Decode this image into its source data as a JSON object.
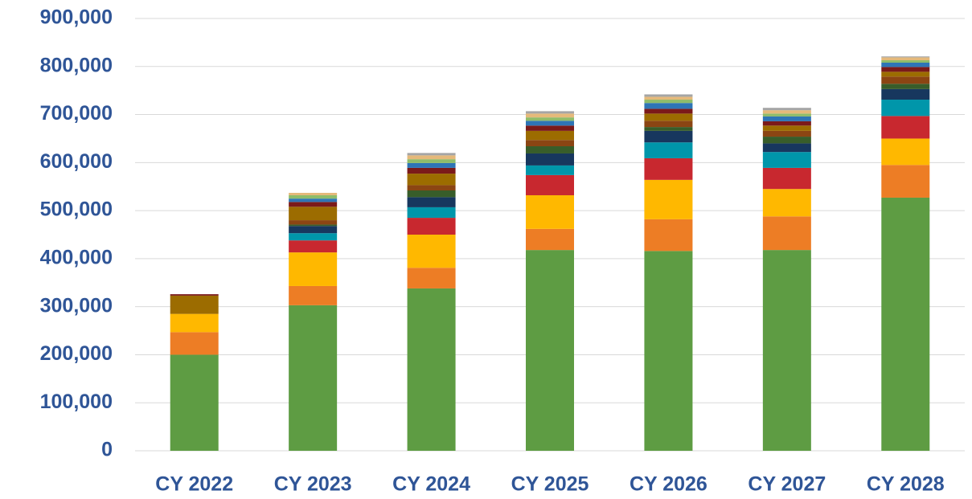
{
  "chart_data": {
    "type": "stacked_bar",
    "categories": [
      "CY 2022",
      "CY 2023",
      "CY 2024",
      "CY 2025",
      "CY 2026",
      "CY 2027",
      "CY 2028"
    ],
    "series": [
      {
        "color": "#5e9c43",
        "values": [
          200000,
          303000,
          338000,
          418000,
          416000,
          418000,
          527000
        ]
      },
      {
        "color": "#ed7d25",
        "values": [
          47000,
          40000,
          43000,
          44000,
          66000,
          70000,
          68000
        ]
      },
      {
        "color": "#ffb800",
        "values": [
          38000,
          70000,
          69000,
          70000,
          82000,
          57000,
          55000
        ]
      },
      {
        "color": "#c8282f",
        "values": [
          0,
          25000,
          35000,
          42000,
          45000,
          44000,
          47000
        ]
      },
      {
        "color": "#0096aa",
        "values": [
          0,
          15000,
          22000,
          20000,
          33000,
          33000,
          34000
        ]
      },
      {
        "color": "#17375e",
        "values": [
          0,
          15000,
          21000,
          25000,
          24000,
          18000,
          22000
        ]
      },
      {
        "color": "#385d2a",
        "values": [
          0,
          3000,
          14000,
          15000,
          8000,
          14000,
          11000
        ]
      },
      {
        "color": "#8b4513",
        "values": [
          0,
          9000,
          11000,
          13000,
          13000,
          12000,
          15000
        ]
      },
      {
        "color": "#9c6c00",
        "values": [
          38000,
          28000,
          24000,
          19000,
          15000,
          11000,
          10000
        ]
      },
      {
        "color": "#7b1a1a",
        "values": [
          3000,
          10000,
          12000,
          11000,
          10000,
          9000,
          10000
        ]
      },
      {
        "color": "#2e75b6",
        "values": [
          0,
          7000,
          10000,
          10000,
          12000,
          10000,
          9000
        ]
      },
      {
        "color": "#8fbc6a",
        "values": [
          0,
          7000,
          8000,
          7000,
          7000,
          6000,
          5000
        ]
      },
      {
        "color": "#e5b97a",
        "values": [
          0,
          5000,
          8000,
          8000,
          6000,
          7000,
          6000
        ]
      },
      {
        "color": "#a5a5a5",
        "values": [
          0,
          0,
          5000,
          5000,
          5000,
          5000,
          2000
        ]
      }
    ],
    "ylim": [
      0,
      900000
    ],
    "yticks": [
      0,
      {
        "value": 100000,
        "label": "100,000"
      },
      {
        "value": 200000,
        "label": "200,000"
      },
      {
        "value": 300000,
        "label": "300,000"
      },
      {
        "value": 400000,
        "label": "400,000"
      },
      {
        "value": 500000,
        "label": "500,000"
      },
      {
        "value": 600000,
        "label": "600,000"
      },
      {
        "value": 700000,
        "label": "700,000"
      },
      {
        "value": 800000,
        "label": "800,000"
      },
      {
        "value": 900000,
        "label": "900,000"
      }
    ],
    "grid": true
  }
}
